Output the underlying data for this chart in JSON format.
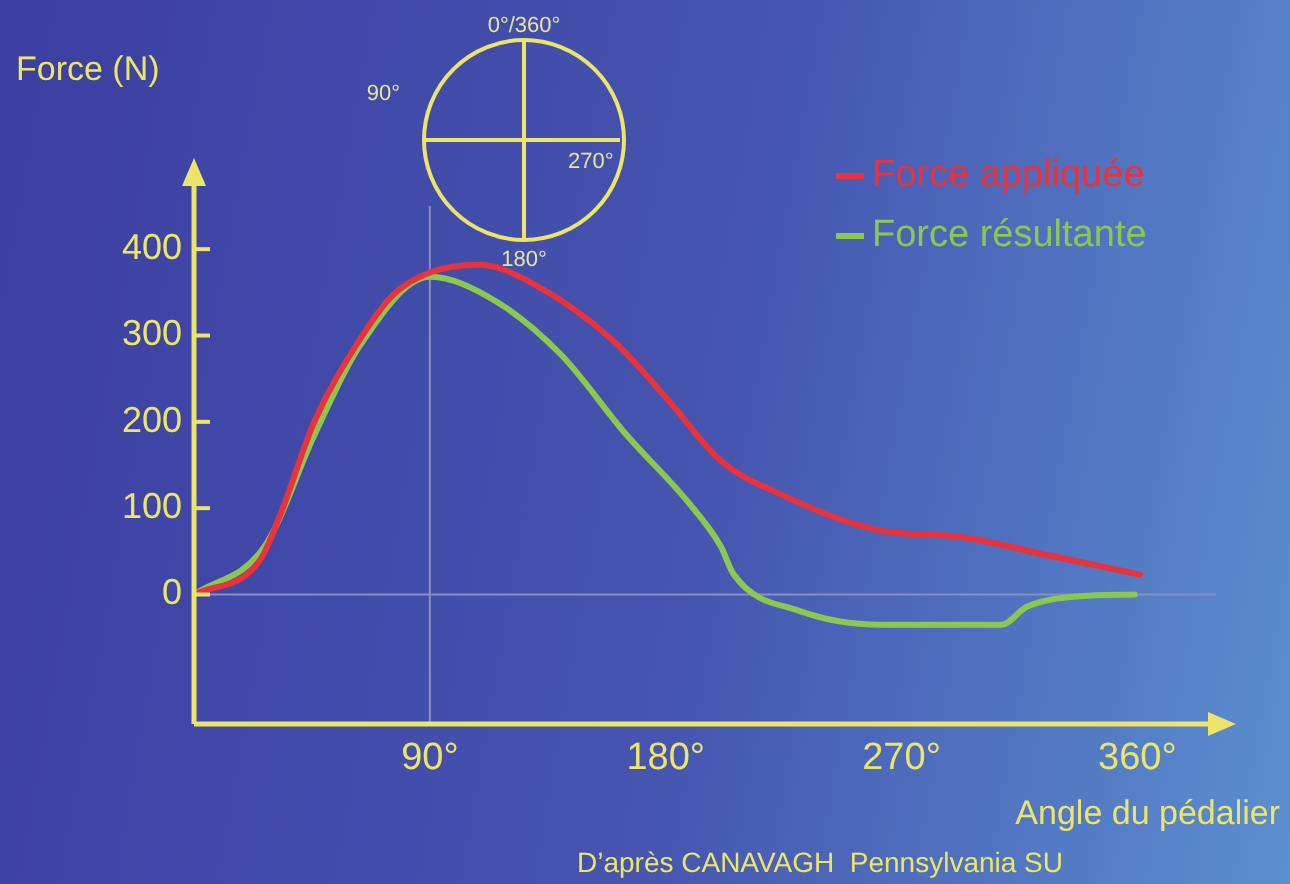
{
  "chart_data": {
    "type": "line",
    "ylabel": "Force (N)",
    "xlabel": "Angle du pédalier",
    "annotations": [
      "0°/360°",
      "90°",
      "270°",
      "180°",
      "D’après CANAVAGH  Pennsylvania SU"
    ],
    "xlim": [
      0,
      390
    ],
    "xticks": [
      {
        "value": 90,
        "label": "90°"
      },
      {
        "value": 180,
        "label": "180°"
      },
      {
        "value": 270,
        "label": "270°"
      },
      {
        "value": 360,
        "label": "360°"
      }
    ],
    "ylim": [
      -150,
      450
    ],
    "yticks": [
      0,
      100,
      200,
      300,
      400
    ],
    "ref_lines": [
      {
        "axis": "x",
        "value": 90,
        "color": "#8a8fc0"
      },
      {
        "axis": "y",
        "value": 0,
        "color": "#8a8fc0"
      }
    ],
    "legend": "top right",
    "marker": "none",
    "line_style": "solid",
    "grid": false,
    "series": [
      {
        "name": "Force appliquée",
        "color": "#e8323c",
        "x": [
          0,
          25,
          33,
          46,
          63,
          76,
          90,
          109,
          130,
          160,
          181,
          201,
          224,
          262,
          292,
          325,
          361
        ],
        "values": [
          0,
          39,
          93,
          201,
          294,
          347,
          373,
          382,
          359,
          294,
          225,
          155,
          116,
          74,
          67,
          46,
          23
        ]
      },
      {
        "name": "Force résultante",
        "color": "#8cc850",
        "x": [
          0,
          27,
          46,
          63,
          90,
          115,
          140,
          165,
          188,
          201,
          206,
          231,
          262,
          308,
          318,
          338,
          359
        ],
        "values": [
          0,
          56,
          185,
          287,
          368,
          340,
          278,
          185,
          109,
          56,
          23,
          -19,
          -35,
          -35,
          -14,
          -2,
          0
        ]
      }
    ]
  }
}
